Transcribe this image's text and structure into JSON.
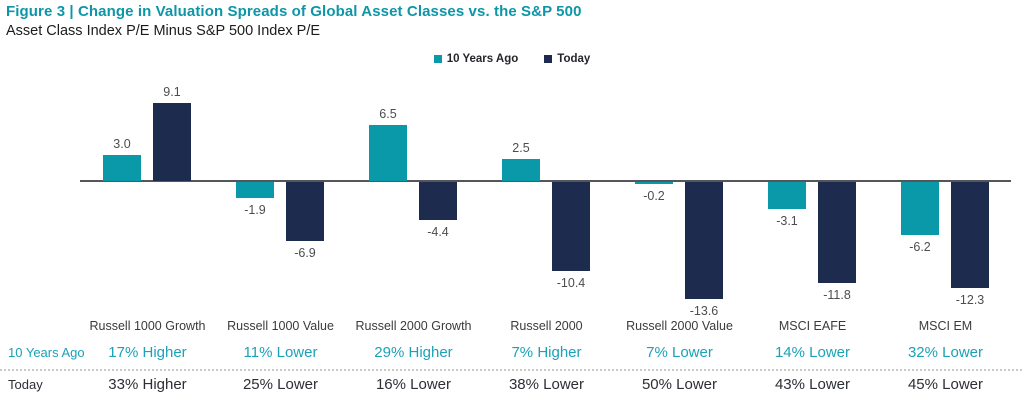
{
  "header": {
    "title": "Figure 3 | Change in Valuation Spreads of Global Asset Classes vs. the S&P 500",
    "subtitle": "Asset Class Index P/E Minus S&P 500 Index P/E"
  },
  "colors": {
    "teal": "#0999a8",
    "navy": "#1c2b4e",
    "teal_text": "#1aa2b8",
    "title_teal": "#0d96a8"
  },
  "legend": [
    {
      "label": "10 Years Ago",
      "color": "#0999a8"
    },
    {
      "label": "Today",
      "color": "#1c2b4e"
    }
  ],
  "chart_data": {
    "type": "bar",
    "title": "Figure 3 | Change in Valuation Spreads of Global Asset Classes vs. the S&P 500",
    "subtitle": "Asset Class Index P/E Minus S&P 500 Index P/E",
    "categories": [
      "Russell 1000 Growth",
      "Russell 1000 Value",
      "Russell 2000 Growth",
      "Russell 2000",
      "Russell 2000 Value",
      "MSCI EAFE",
      "MSCI EM"
    ],
    "series": [
      {
        "name": "10 Years Ago",
        "color": "#0999a8",
        "values": [
          3.0,
          -1.9,
          6.5,
          2.5,
          -0.2,
          -3.1,
          -6.2
        ]
      },
      {
        "name": "Today",
        "color": "#1c2b4e",
        "values": [
          9.1,
          -6.9,
          -4.4,
          -10.4,
          -13.6,
          -11.8,
          -12.3
        ]
      }
    ],
    "value_labels": [
      [
        "3.0",
        "-1.9",
        "6.5",
        "2.5",
        "-0.2",
        "-3.1",
        "-6.2"
      ],
      [
        "9.1",
        "-6.9",
        "-4.4",
        "-10.4",
        "-13.6",
        "-11.8",
        "-12.3"
      ]
    ],
    "xlabel": "",
    "ylabel": "",
    "ylim": [
      -14,
      10
    ],
    "grid": false,
    "legend_position": "top"
  },
  "table": {
    "rows": [
      {
        "label": "10 Years Ago",
        "values": [
          "17% Higher",
          "11% Lower",
          "29% Higher",
          "7% Higher",
          "7% Lower",
          "14% Lower",
          "32% Lower"
        ]
      },
      {
        "label": "Today",
        "values": [
          "33% Higher",
          "25% Lower",
          "16% Lower",
          "38% Lower",
          "50% Lower",
          "43% Lower",
          "45% Lower"
        ]
      }
    ]
  }
}
